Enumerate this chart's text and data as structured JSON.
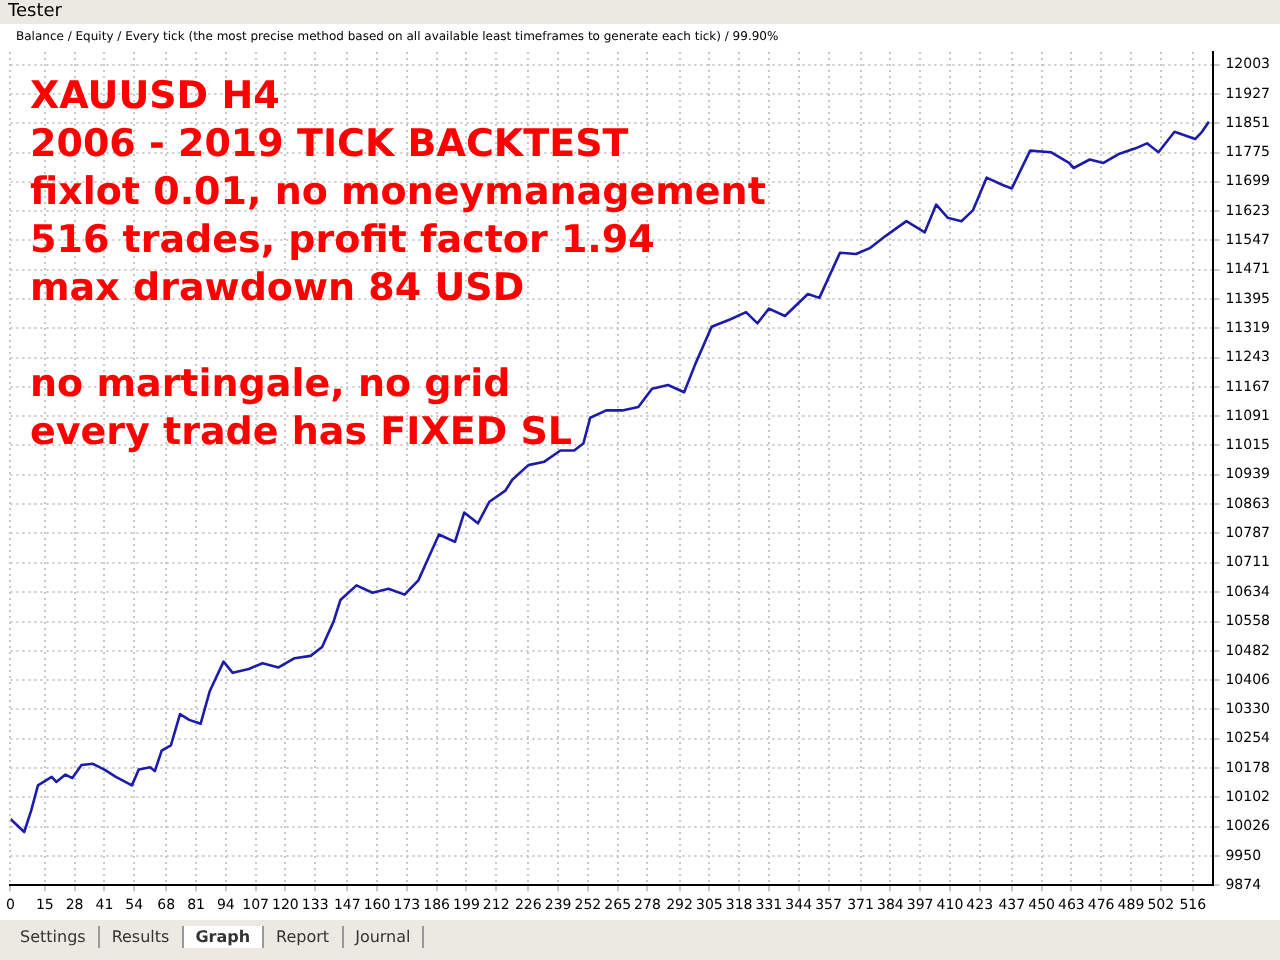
{
  "chart_data": {
    "type": "line",
    "title": "Tester",
    "subtitle": "Balance / Equity / Every tick (the most precise method based on all available least timeframes to generate each tick) / 99.90%",
    "annotations": [
      "XAUUSD H4",
      "2006 - 2019 TICK BACKTEST",
      "fixlot 0.01, no moneymanagement",
      "516 trades, profit factor 1.94",
      "max drawdown 84 USD",
      "no martingale, no grid",
      "every trade has FIXED SL",
      "Settings",
      "Results",
      "Graph",
      "Report",
      "Journal"
    ],
    "x": [
      0,
      6,
      9,
      12,
      18,
      20,
      24,
      27,
      31,
      36,
      41,
      46,
      53,
      56,
      61,
      63,
      66,
      70,
      74,
      78,
      83,
      87,
      93,
      97,
      104,
      110,
      117,
      124,
      131,
      136,
      141,
      144,
      151,
      158,
      165,
      172,
      178,
      182,
      187,
      194,
      198,
      204,
      209,
      216,
      219,
      226,
      233,
      240,
      246,
      250,
      253,
      260,
      267,
      274,
      280,
      287,
      294,
      299,
      306,
      314,
      321,
      326,
      331,
      338,
      348,
      353,
      362,
      369,
      375,
      382,
      391,
      399,
      404,
      409,
      415,
      420,
      426,
      433,
      437,
      445,
      454,
      462,
      464,
      471,
      477,
      484,
      491,
      496,
      501,
      508,
      517,
      520,
      523
    ],
    "series": [
      {
        "color": "#1c1ca8",
        "values": [
          10046,
          10012,
          10067,
          10133,
          10155,
          10142,
          10161,
          10152,
          10186,
          10189,
          10174,
          10155,
          10133,
          10174,
          10180,
          10170,
          10223,
          10237,
          10318,
          10303,
          10293,
          10378,
          10454,
          10425,
          10435,
          10450,
          10439,
          10463,
          10469,
          10492,
          10558,
          10614,
          10652,
          10633,
          10643,
          10628,
          10665,
          10718,
          10784,
          10765,
          10841,
          10813,
          10869,
          10898,
          10926,
          10964,
          10973,
          11002,
          11002,
          11020,
          11087,
          11106,
          11106,
          11115,
          11162,
          11172,
          11153,
          11228,
          11323,
          11342,
          11361,
          11332,
          11370,
          11351,
          11408,
          11398,
          11515,
          11512,
          11527,
          11559,
          11597,
          11568,
          11640,
          11606,
          11597,
          11625,
          11710,
          11691,
          11682,
          11780,
          11776,
          11748,
          11735,
          11757,
          11748,
          11772,
          11786,
          11799,
          11776,
          11829,
          11810,
          11829,
          11855
        ]
      }
    ],
    "xlim": [
      0,
      525
    ],
    "xticks": [
      0,
      15,
      28,
      41,
      54,
      68,
      81,
      94,
      107,
      120,
      133,
      147,
      160,
      173,
      186,
      199,
      212,
      226,
      239,
      252,
      265,
      278,
      292,
      305,
      318,
      331,
      344,
      357,
      371,
      384,
      397,
      410,
      423,
      437,
      450,
      463,
      476,
      489,
      502,
      516
    ],
    "ylim": [
      9874,
      12036
    ],
    "yticks": [
      9874,
      9950,
      10026,
      10102,
      10178,
      10254,
      10330,
      10406,
      10482,
      10558,
      10634,
      10711,
      10787,
      10863,
      10939,
      11015,
      11091,
      11167,
      11243,
      11319,
      11395,
      11471,
      11547,
      11623,
      11699,
      11775,
      11851,
      11927,
      12003
    ],
    "grid": true,
    "legend": false,
    "marker": "none",
    "line_style": "solid"
  }
}
